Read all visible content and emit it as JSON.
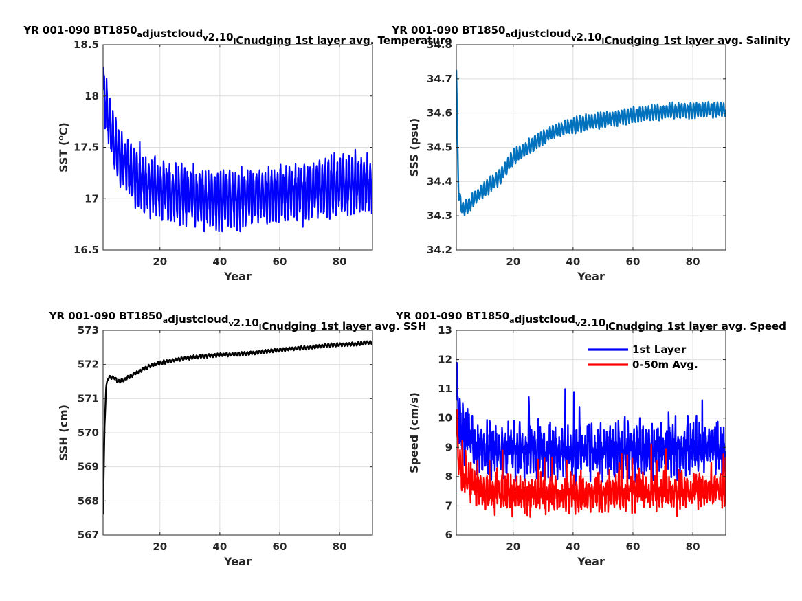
{
  "chart_data": [
    {
      "type": "line",
      "title": "YR 001-090 BT1850_adjustcloud_v2.10_lCnudging 1st layer avg. Temperature",
      "title_parts": [
        {
          "text": "YR 001-090 BT1850",
          "sub": false
        },
        {
          "text": "a",
          "sub": true
        },
        {
          "text": "djustcloud",
          "sub": false
        },
        {
          "text": "v",
          "sub": true
        },
        {
          "text": "2.10",
          "sub": false
        },
        {
          "text": "l",
          "sub": true
        },
        {
          "text": "Cnudging 1st layer avg. Temperature",
          "sub": false
        }
      ],
      "xlabel": "Year",
      "ylabel": "SST (",
      "ylabel_sup": "o",
      "ylabel_end": "C)",
      "xlim": [
        1,
        91
      ],
      "ylim": [
        16.5,
        18.5
      ],
      "xticks": [
        20,
        40,
        60,
        80
      ],
      "yticks": [
        16.5,
        17,
        17.5,
        18,
        18.5
      ],
      "ytick_labels": [
        "16.5",
        "17",
        "17.5",
        "18",
        "18.5"
      ],
      "grid": true,
      "series": [
        {
          "color": "#0000ff",
          "width": 2.2,
          "model": "seasonal",
          "trend_x": [
            1,
            2,
            4,
            6,
            8,
            10,
            15,
            20,
            25,
            30,
            35,
            40,
            45,
            50,
            55,
            60,
            65,
            70,
            75,
            80,
            85,
            88,
            91
          ],
          "trend_y": [
            18.1,
            17.9,
            17.6,
            17.45,
            17.35,
            17.28,
            17.15,
            17.08,
            17.05,
            17.02,
            17.0,
            17.0,
            17.0,
            17.02,
            17.03,
            17.04,
            17.06,
            17.08,
            17.1,
            17.12,
            17.14,
            17.15,
            17.15
          ],
          "amplitude": 0.23,
          "noise": 0.07,
          "min": 16.68,
          "max": 18.28
        }
      ]
    },
    {
      "type": "line",
      "title": "YR 001-090 BT1850_adjustcloud_v2.10_lCnudging 1st layer avg. Salinity",
      "title_parts": [
        {
          "text": "YR 001-090 BT1850",
          "sub": false
        },
        {
          "text": "a",
          "sub": true
        },
        {
          "text": "djustcloud",
          "sub": false
        },
        {
          "text": "v",
          "sub": true
        },
        {
          "text": "2.10",
          "sub": false
        },
        {
          "text": "l",
          "sub": true
        },
        {
          "text": "Cnudging 1st layer avg. Salinity",
          "sub": false
        }
      ],
      "xlabel": "Year",
      "ylabel": "SSS (psu)",
      "xlim": [
        1,
        91
      ],
      "ylim": [
        34.2,
        34.8
      ],
      "xticks": [
        20,
        40,
        60,
        80
      ],
      "yticks": [
        34.2,
        34.3,
        34.4,
        34.5,
        34.6,
        34.7,
        34.8
      ],
      "ytick_labels": [
        "34.2",
        "34.3",
        "34.4",
        "34.5",
        "34.6",
        "34.7",
        "34.8"
      ],
      "grid": true,
      "series": [
        {
          "color": "#0072bd",
          "width": 2.4,
          "model": "seasonal",
          "trend_x": [
            1,
            1.3,
            1.8,
            3,
            5,
            8,
            12,
            16,
            20,
            25,
            30,
            35,
            40,
            50,
            60,
            70,
            80,
            91
          ],
          "trend_y": [
            34.73,
            34.55,
            34.36,
            34.32,
            34.33,
            34.36,
            34.39,
            34.42,
            34.47,
            34.5,
            34.53,
            34.55,
            34.565,
            34.58,
            34.595,
            34.605,
            34.61,
            34.61
          ],
          "amplitude": 0.018,
          "noise": 0.004,
          "min": 34.29,
          "max": 34.73
        }
      ]
    },
    {
      "type": "line",
      "title": "YR 001-090 BT1850_adjustcloud_v2.10_lCnudging 1st layer avg. SSH",
      "title_parts": [
        {
          "text": "YR 001-090 BT1850",
          "sub": false
        },
        {
          "text": "a",
          "sub": true
        },
        {
          "text": "djustcloud",
          "sub": false
        },
        {
          "text": "v",
          "sub": true
        },
        {
          "text": "2.10",
          "sub": false
        },
        {
          "text": "l",
          "sub": true
        },
        {
          "text": "Cnudging 1st layer avg. SSH",
          "sub": false
        }
      ],
      "xlabel": "Year",
      "ylabel": "SSH (cm)",
      "xlim": [
        1,
        91
      ],
      "ylim": [
        567,
        573
      ],
      "xticks": [
        20,
        40,
        60,
        80
      ],
      "yticks": [
        567,
        568,
        569,
        570,
        571,
        572,
        573
      ],
      "ytick_labels": [
        "567",
        "568",
        "569",
        "570",
        "571",
        "572",
        "573"
      ],
      "grid": true,
      "series": [
        {
          "color": "#000000",
          "width": 2.4,
          "model": "seasonal",
          "trend_x": [
            1,
            1.5,
            2,
            2.5,
            3,
            4,
            5,
            6,
            8,
            10,
            14,
            18,
            22,
            26,
            30,
            35,
            40,
            45,
            50,
            55,
            60,
            65,
            70,
            75,
            80,
            85,
            91
          ],
          "trend_y": [
            567.6,
            570.2,
            571.3,
            571.55,
            571.62,
            571.63,
            571.6,
            571.5,
            571.55,
            571.65,
            571.85,
            572.0,
            572.08,
            572.15,
            572.2,
            572.25,
            572.28,
            572.3,
            572.33,
            572.38,
            572.43,
            572.47,
            572.5,
            572.55,
            572.58,
            572.6,
            572.65
          ],
          "amplitude": 0.04,
          "noise": 0.015,
          "min": 567.6,
          "max": 572.72
        }
      ]
    },
    {
      "type": "line",
      "title": "YR 001-090 BT1850_adjustcloud_v2.10_lCnudging 1st layer avg. Speed",
      "title_parts": [
        {
          "text": "YR 001-090 BT1850",
          "sub": false
        },
        {
          "text": "a",
          "sub": true
        },
        {
          "text": "djustcloud",
          "sub": false
        },
        {
          "text": "v",
          "sub": true
        },
        {
          "text": "2.10",
          "sub": false
        },
        {
          "text": "l",
          "sub": true
        },
        {
          "text": "Cnudging 1st layer avg. Speed",
          "sub": false
        }
      ],
      "xlabel": "Year",
      "ylabel": "Speed (cm/s)",
      "xlim": [
        1,
        91
      ],
      "ylim": [
        6,
        13
      ],
      "xticks": [
        20,
        40,
        60,
        80
      ],
      "yticks": [
        6,
        7,
        8,
        9,
        10,
        11,
        12,
        13
      ],
      "ytick_labels": [
        "6",
        "7",
        "8",
        "9",
        "10",
        "11",
        "12",
        "13"
      ],
      "grid": true,
      "legend": "top-right",
      "series": [
        {
          "name": "1st Layer",
          "color": "#0000ff",
          "width": 2.4,
          "model": "noisy",
          "trend_x": [
            1,
            1.5,
            2,
            4,
            8,
            12,
            20,
            40,
            60,
            80,
            91
          ],
          "trend_y": [
            11.5,
            10.5,
            9.8,
            9.4,
            9.0,
            8.9,
            8.85,
            8.85,
            8.9,
            8.95,
            9.0
          ],
          "amplitude": 0.8,
          "noise": 0.5,
          "min": 7.6,
          "max": 12.2
        },
        {
          "name": "0-50m Avg.",
          "color": "#ff0000",
          "width": 2.4,
          "model": "noisy",
          "trend_x": [
            1,
            1.5,
            2,
            4,
            8,
            12,
            20,
            40,
            60,
            80,
            91
          ],
          "trend_y": [
            10.0,
            9.0,
            8.3,
            8.0,
            7.6,
            7.45,
            7.4,
            7.4,
            7.45,
            7.5,
            7.55
          ],
          "amplitude": 0.55,
          "noise": 0.35,
          "min": 6.3,
          "max": 10.5
        }
      ]
    }
  ]
}
